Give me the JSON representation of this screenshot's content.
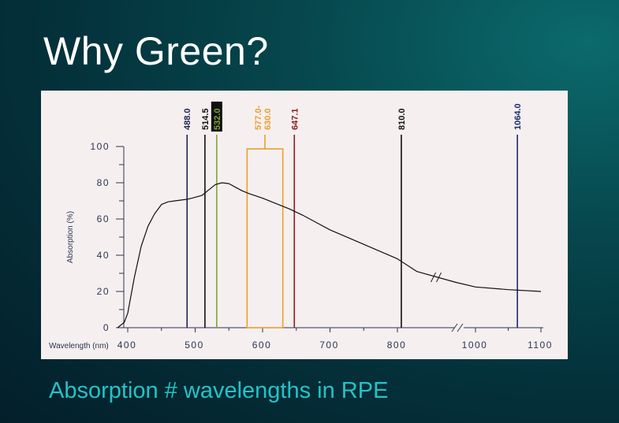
{
  "slide": {
    "title": "Why Green?",
    "caption": "Absorption # wavelengths in RPE"
  },
  "colors": {
    "panel_background": "#f6eff0",
    "axis": "#2c3550",
    "curve": "#111111",
    "caption": "#22c4c8"
  },
  "chart_data": {
    "type": "line",
    "title": "",
    "xlabel": "Wavelength (nm)",
    "ylabel": "Absorption (%)",
    "xlim": [
      400,
      1100
    ],
    "ylim": [
      0,
      100
    ],
    "x_ticks": [
      "400",
      "500",
      "600",
      "700",
      "800",
      "1000",
      "1100"
    ],
    "y_ticks": [
      "100",
      "80",
      "60",
      "40",
      "20",
      "0"
    ],
    "grid": false,
    "axis_break": "between 800 and 1000 nm",
    "series": [
      {
        "x": [
          385,
          395,
          400,
          410,
          420,
          430,
          440,
          450,
          460,
          470,
          480,
          490,
          500,
          510,
          520,
          530,
          540,
          550,
          560,
          570,
          580,
          600,
          620,
          640,
          660,
          680,
          700,
          750,
          800,
          850,
          950,
          1000,
          1050,
          1100
        ],
        "y": [
          0,
          3,
          8,
          28,
          45,
          56,
          63,
          68,
          69.5,
          70,
          70.5,
          71,
          72,
          73,
          76,
          79,
          80,
          79.5,
          77.5,
          75.5,
          74,
          71.5,
          68.5,
          65.5,
          62,
          58,
          54,
          46,
          38,
          31,
          25,
          22.5,
          21,
          20
        ]
      }
    ],
    "markers": [
      {
        "label": "488.0",
        "color": "#1e2452"
      },
      {
        "label": "514.5",
        "color": "#111111"
      },
      {
        "label": "532.0",
        "color": "#7aa832",
        "highlight": true
      },
      {
        "label": "577.0-\n630.0",
        "color": "#e8a12c",
        "band": true
      },
      {
        "label": "647.1",
        "color": "#8c1a1c"
      },
      {
        "label": "810.0",
        "color": "#111111"
      },
      {
        "label": "1064.0",
        "color": "#1a2a6a"
      }
    ],
    "marker_positions_nm": [
      488.0,
      514.5,
      532.0,
      [
        577.0,
        630.0
      ],
      647.1,
      810.0,
      1064.0
    ]
  }
}
